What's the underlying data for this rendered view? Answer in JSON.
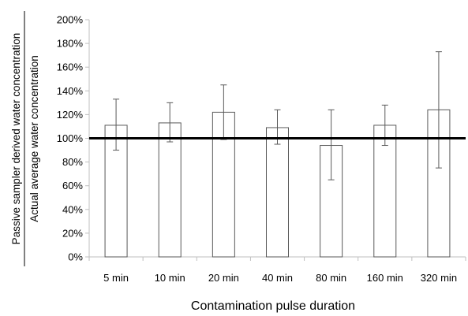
{
  "chart_data": {
    "type": "bar",
    "categories": [
      "5 min",
      "10 min",
      "20 min",
      "40 min",
      "80 min",
      "160 min",
      "320 min"
    ],
    "values": [
      111,
      113,
      122,
      109,
      94,
      111,
      124
    ],
    "error_low": [
      90,
      97,
      99,
      95,
      65,
      94,
      75
    ],
    "error_high": [
      133,
      130,
      145,
      124,
      124,
      128,
      173
    ],
    "reference_line": 100,
    "title": "",
    "xlabel": "Contamination pulse duration",
    "ylabel_numerator": "Passive sampler derived water concentration",
    "ylabel_denominator": "Actual average water concentration",
    "ylim": [
      0,
      200
    ],
    "ytick_values": [
      0,
      20,
      40,
      60,
      80,
      100,
      120,
      140,
      160,
      180,
      200
    ],
    "ytick_labels": [
      "0%",
      "20%",
      "40%",
      "60%",
      "80%",
      "100%",
      "120%",
      "140%",
      "160%",
      "180%",
      "200%"
    ],
    "unit": "%",
    "grid": false,
    "legend": "none",
    "colors": {
      "bar_fill": "#ffffff",
      "bar_stroke": "#595959",
      "axis": "#bfbfbf",
      "error_bar": "#595959",
      "reference_line": "#000000"
    }
  }
}
